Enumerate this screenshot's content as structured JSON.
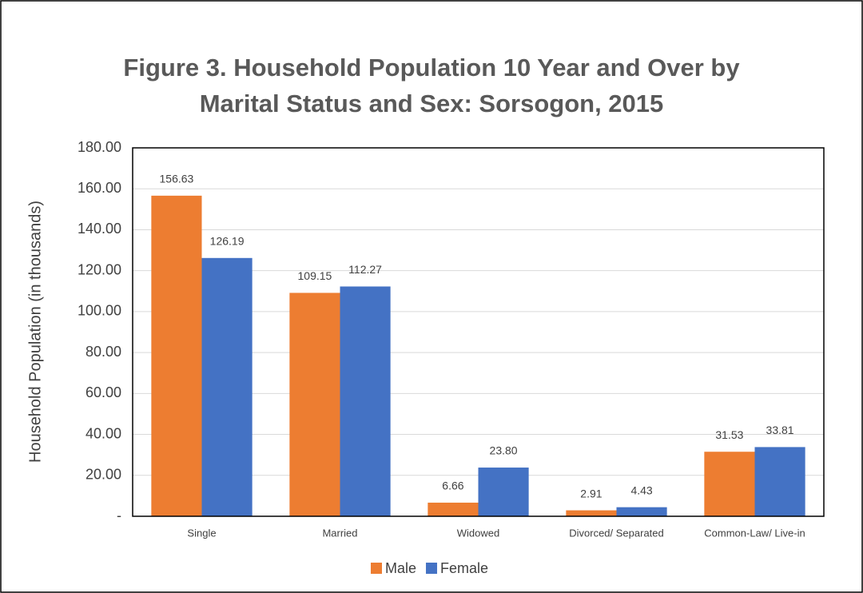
{
  "chart_data": {
    "type": "bar",
    "title": "Figure 3. Household Population 10 Year and Over by Marital Status and Sex: Sorsogon, 2015",
    "y_label": "Household Population (in thousands)",
    "categories": [
      "Single",
      "Married",
      "Widowed",
      "Divorced/ Separated",
      "Common-Law/ Live-in"
    ],
    "series": [
      {
        "name": "Male",
        "color": "#ed7d31",
        "values": [
          156.63,
          109.15,
          6.66,
          2.91,
          31.53
        ],
        "value_labels": [
          "156.63",
          "109.15",
          "6.66",
          "2.91",
          "31.53"
        ]
      },
      {
        "name": "Female",
        "color": "#4472c4",
        "values": [
          126.19,
          112.27,
          23.8,
          4.43,
          33.81
        ],
        "value_labels": [
          "126.19",
          "112.27",
          "23.80",
          "4.43",
          "33.81"
        ]
      }
    ],
    "ylim": [
      0,
      180
    ],
    "yticks": [
      {
        "value": 0,
        "label": "-"
      },
      {
        "value": 20,
        "label": "20.00"
      },
      {
        "value": 40,
        "label": "40.00"
      },
      {
        "value": 60,
        "label": "60.00"
      },
      {
        "value": 80,
        "label": "80.00"
      },
      {
        "value": 100,
        "label": "100.00"
      },
      {
        "value": 120,
        "label": "120.00"
      },
      {
        "value": 140,
        "label": "140.00"
      },
      {
        "value": 160,
        "label": "160.00"
      },
      {
        "value": 180,
        "label": "180.00"
      }
    ],
    "grid": true,
    "legend": "bottom"
  }
}
